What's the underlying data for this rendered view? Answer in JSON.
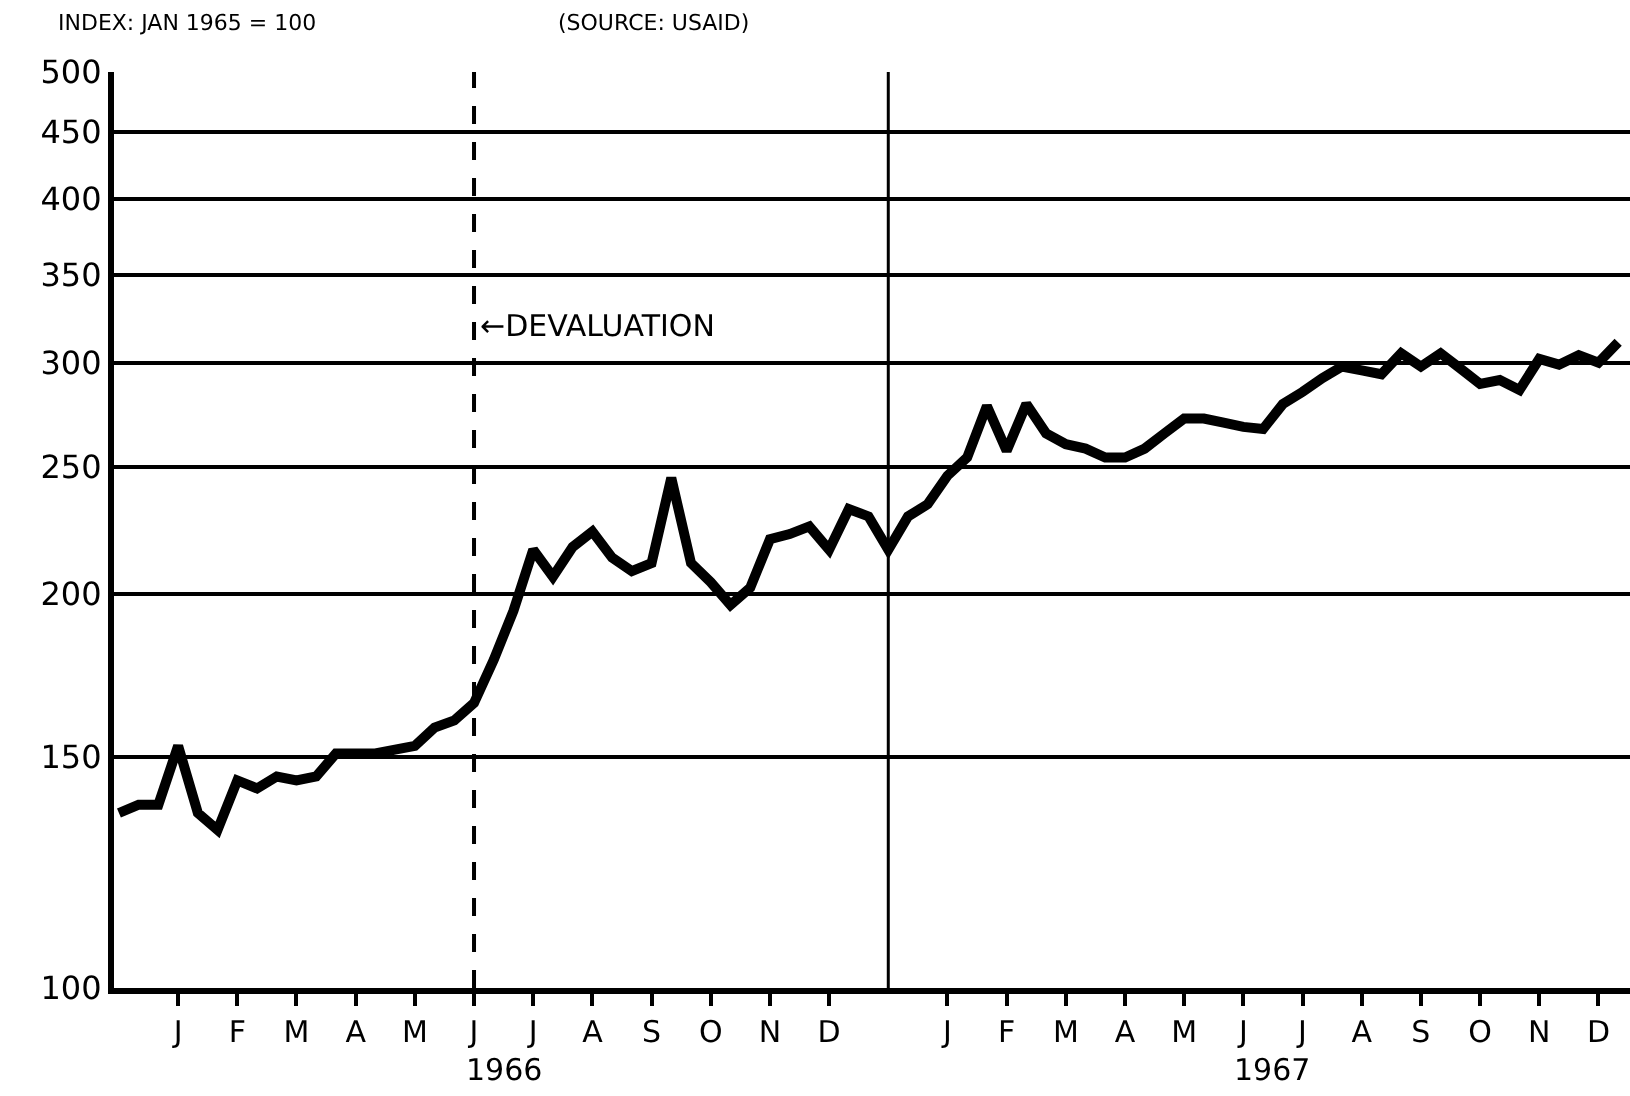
{
  "chart_data": {
    "type": "line",
    "ylabel": "INDEX: JAN 1965 = 100",
    "annotations": [
      "(SOURCE: USAID)",
      "←DEVALUATION",
      "1966",
      "1967"
    ],
    "categories": [
      null,
      null,
      null,
      "J",
      null,
      null,
      "F",
      null,
      null,
      "M",
      null,
      null,
      "A",
      null,
      null,
      "M",
      null,
      null,
      "J",
      null,
      null,
      "J",
      null,
      null,
      "A",
      null,
      null,
      "S",
      null,
      null,
      "O",
      null,
      null,
      "N",
      null,
      null,
      "D",
      null,
      null,
      null,
      null,
      null,
      "J",
      null,
      null,
      "F",
      null,
      null,
      "M",
      null,
      null,
      "A",
      null,
      null,
      "M",
      null,
      null,
      "J",
      null,
      null,
      "J",
      null,
      null,
      "A",
      null,
      null,
      "S",
      null,
      null,
      "O",
      null,
      null,
      "N",
      null,
      null,
      "D",
      null
    ],
    "series": [
      {
        "color": "#000000",
        "values": [
          136,
          138,
          138,
          153,
          136,
          132,
          144,
          142,
          145,
          144,
          145,
          151,
          151,
          151,
          152,
          153,
          158,
          160,
          165,
          178,
          194,
          216,
          206,
          217,
          223,
          213,
          208,
          211,
          245,
          211,
          204,
          196,
          202,
          220,
          222,
          225,
          216,
          232,
          229,
          216,
          229,
          234,
          246,
          254,
          278,
          257,
          279,
          265,
          260,
          258,
          254,
          254,
          258,
          265,
          272,
          272,
          270,
          268,
          267,
          279,
          285,
          292,
          298,
          296,
          294,
          305,
          298,
          305,
          297,
          289,
          291,
          286,
          302,
          299,
          304,
          300,
          311
        ]
      }
    ],
    "log": "y",
    "ylim": [
      100,
      500
    ],
    "yticks": [
      100,
      150,
      200,
      250,
      300,
      350,
      400,
      450,
      500
    ],
    "grid": "y",
    "marker": "none",
    "line_style": "solid"
  }
}
